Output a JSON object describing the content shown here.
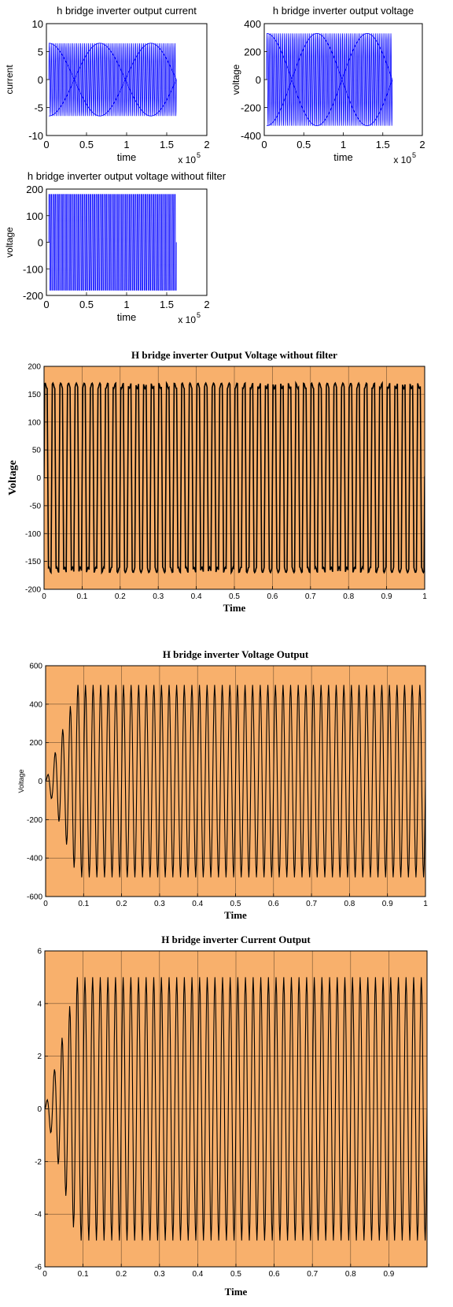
{
  "chart_data": [
    {
      "type": "line",
      "title": "h bridge inverter output current",
      "xlabel": "time",
      "ylabel": "current",
      "x_multiplier": "x 10",
      "x_exponent": "5",
      "xlim": [
        0,
        2
      ],
      "ylim": [
        -10,
        10
      ],
      "xticks": [
        "0",
        "0.5",
        "1",
        "1.5",
        "2"
      ],
      "yticks": [
        "10",
        "5",
        "0",
        "-5",
        "-10"
      ],
      "grid": false,
      "line_color": "#0000ff",
      "background": "#ffffff",
      "series": [
        {
          "amplitude": 6.5,
          "x_start": 0.03,
          "x_end": 1.62,
          "cycles": 65,
          "envelope_cycles": 1.25
        }
      ]
    },
    {
      "type": "line",
      "title": "h bridge inverter output voltage",
      "xlabel": "time",
      "ylabel": "voltage",
      "x_multiplier": "x 10",
      "x_exponent": "5",
      "xlim": [
        0,
        2
      ],
      "ylim": [
        -400,
        400
      ],
      "xticks": [
        "0",
        "0.5",
        "1",
        "1.5",
        "2"
      ],
      "yticks": [
        "400",
        "200",
        "0",
        "-200",
        "-400"
      ],
      "grid": false,
      "line_color": "#0000ff",
      "background": "#ffffff",
      "series": [
        {
          "amplitude": 330,
          "x_start": 0.03,
          "x_end": 1.62,
          "cycles": 65,
          "envelope_cycles": 1.25
        }
      ]
    },
    {
      "type": "line",
      "title": "h bridge inverter output voltage without filter",
      "xlabel": "time",
      "ylabel": "voltage",
      "x_multiplier": "x 10",
      "x_exponent": "5",
      "xlim": [
        0,
        2
      ],
      "ylim": [
        -200,
        200
      ],
      "xticks": [
        "0",
        "0.5",
        "1",
        "1.5",
        "2"
      ],
      "yticks": [
        "200",
        "100",
        "0",
        "-100",
        "-200"
      ],
      "grid": false,
      "line_color": "#0000ff",
      "background": "#ffffff",
      "series": [
        {
          "amplitude": 180,
          "x_start": 0.03,
          "x_end": 1.62,
          "cycles": 65,
          "waveform": "pwm"
        }
      ]
    },
    {
      "type": "line",
      "title": "H bridge inverter Output Voltage without filter",
      "xlabel": "Time",
      "ylabel": "Voltage",
      "xlim": [
        0,
        1
      ],
      "ylim": [
        -200,
        200
      ],
      "xticks": [
        "0",
        "0.1",
        "0.2",
        "0.3",
        "0.4",
        "0.5",
        "0.6",
        "0.7",
        "0.8",
        "0.9",
        "1"
      ],
      "yticks": [
        "200",
        "150",
        "100",
        "50",
        "0",
        "-50",
        "-100",
        "-150",
        "-200"
      ],
      "grid": true,
      "line_color": "#000000",
      "background": "#f8b06c",
      "series": [
        {
          "amplitude": 165,
          "x_start": 0.0,
          "x_end": 1.0,
          "cycles": 50,
          "waveform": "pwm"
        }
      ]
    },
    {
      "type": "line",
      "title": "H bridge inverter Voltage Output",
      "xlabel": "Time",
      "ylabel": "Voltage",
      "xlim": [
        0,
        1
      ],
      "ylim": [
        -600,
        600
      ],
      "xticks": [
        "0",
        "0.1",
        "0.2",
        "0.3",
        "0.4",
        "0.5",
        "0.6",
        "0.7",
        "0.8",
        "0.9",
        "1"
      ],
      "yticks": [
        "600",
        "400",
        "200",
        "0",
        "-200",
        "-400",
        "-600"
      ],
      "grid": true,
      "line_color": "#000000",
      "background": "#f8b06c",
      "series": [
        {
          "amplitude": 500,
          "x_start": 0.0,
          "x_end": 1.0,
          "cycles": 50,
          "waveform": "sine-startup"
        }
      ]
    },
    {
      "type": "line",
      "title": "H bridge inverter Current Output",
      "xlabel": "Time",
      "ylabel": "",
      "xlim": [
        0,
        1
      ],
      "ylim": [
        -6,
        6
      ],
      "xticks": [
        "0",
        "0.1",
        "0.2",
        "0.3",
        "0.4",
        "0.5",
        "0.6",
        "0.7",
        "0.8",
        "0.9"
      ],
      "yticks": [
        "6",
        "4",
        "2",
        "0",
        "-2",
        "-4",
        "-6"
      ],
      "grid": true,
      "line_color": "#000000",
      "background": "#f8b06c",
      "series": [
        {
          "amplitude": 5,
          "x_start": 0.0,
          "x_end": 1.0,
          "cycles": 50,
          "waveform": "sine-startup"
        }
      ]
    }
  ]
}
